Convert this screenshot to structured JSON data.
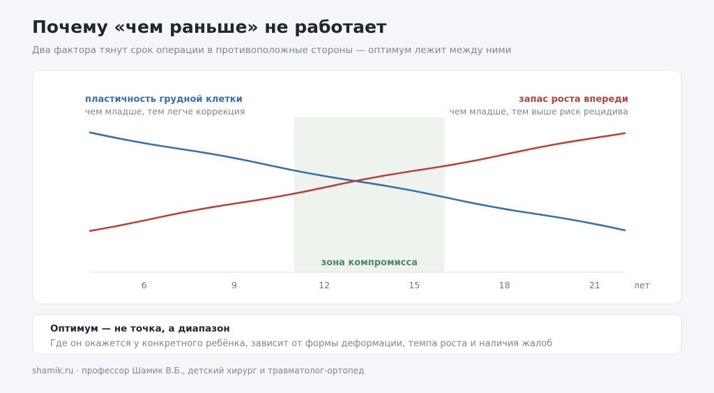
{
  "header": {
    "title": "Почему «чем раньше» не работает",
    "subtitle": "Два фактора тянут срок операции в противоположные стороны — оптимум лежит между ними"
  },
  "chart_data": {
    "type": "line",
    "x_unit": "лет",
    "xlim": [
      4.2,
      22
    ],
    "x_ticks": [
      6,
      9,
      12,
      15,
      18,
      21
    ],
    "ylim": [
      0,
      1
    ],
    "grid": false,
    "legend_placement": "top-left / top-right",
    "series": [
      {
        "name": "пластичность грудной клетки",
        "description": "чем младше, тем легче коррекция",
        "color": "#3a6fa8",
        "x": [
          4.2,
          22
        ],
        "y": [
          0.95,
          0.15
        ]
      },
      {
        "name": "запас роста впереди",
        "description": "чем младше, тем выше риск рецидива",
        "color": "#b5443f",
        "x": [
          4.2,
          22
        ],
        "y": [
          0.15,
          0.95
        ]
      }
    ],
    "band": {
      "label": "зона компромисса",
      "x_range": [
        11,
        16
      ],
      "color": "#eef3ee"
    }
  },
  "note": {
    "title": "Оптимум — не точка, а диапазон",
    "text": "Где он окажется у конкретного ребёнка, зависит от формы деформации, темпа роста и наличия жалоб"
  },
  "footer": {
    "text": "shamik.ru · профессор Шамик В.Б., детский хирург и травматолог-ортопед"
  }
}
